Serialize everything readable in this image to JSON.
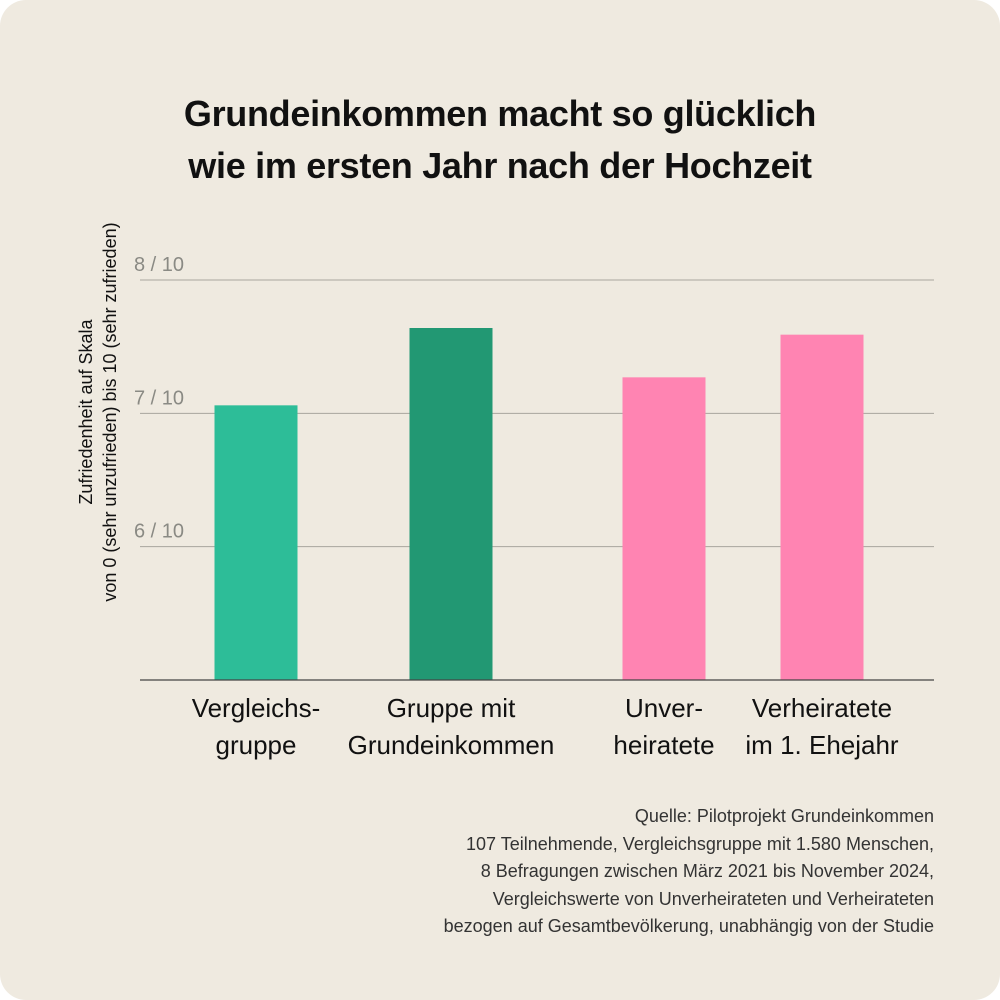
{
  "title": {
    "line1": "Grundeinkommen macht so glücklich",
    "line2": "wie im ersten Jahr nach der Hochzeit"
  },
  "chart_data": {
    "type": "bar",
    "title": "Grundeinkommen macht so glücklich wie im ersten Jahr nach der Hochzeit",
    "ylabel": "Zufriedenheit auf Skala von 0 (sehr unzufrieden) bis 10 (sehr zufrieden)",
    "ylabel_lines": [
      "Zufriedenheit auf Skala",
      "von 0 (sehr unzufrieden)  bis 10 (sehr zufrieden)"
    ],
    "ylim": [
      5,
      8
    ],
    "yticks": [
      {
        "value": 6,
        "label": "6 / 10"
      },
      {
        "value": 7,
        "label": "7 / 10"
      },
      {
        "value": 8,
        "label": "8 / 10"
      }
    ],
    "grid": true,
    "categories": [
      [
        "Vergleichs-",
        "gruppe"
      ],
      [
        "Gruppe mit",
        "Grundeinkommen"
      ],
      [
        "Unver-",
        "heiratete"
      ],
      [
        "Verheiratete",
        "im 1. Ehejahr"
      ]
    ],
    "values": [
      7.06,
      7.64,
      7.27,
      7.59
    ],
    "colors": [
      "#2dbd98",
      "#229873",
      "#ff84b2",
      "#ff84b2"
    ]
  },
  "source": {
    "lines": [
      "Quelle: Pilotprojekt Grundeinkommen",
      "107 Teilnehmende, Vergleichsgruppe mit 1.580 Menschen,",
      "8 Befragungen zwischen März 2021 bis November 2024,",
      "Vergleichswerte von Unverheirateten und Verheirateten",
      "bezogen auf Gesamtbevölkerung, unabhängig von der Studie"
    ]
  },
  "colors": {
    "background": "#efeae0",
    "text": "#111111",
    "tick_text": "#8a8a84",
    "grid": "#a8a59e",
    "axis": "#444444"
  }
}
